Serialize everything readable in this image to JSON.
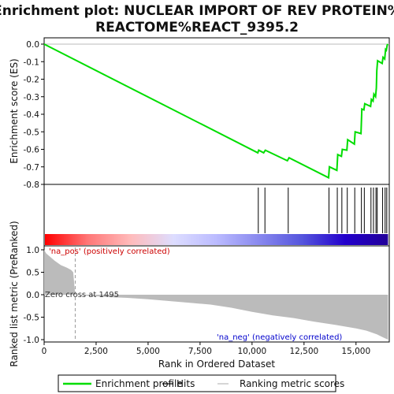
{
  "chart_data": {
    "type": "line",
    "title_line1": "Enrichment plot: NUCLEAR IMPORT OF REV PROTEIN%",
    "title_line2": "REACTOME%REACT_9395.2",
    "xlabel": "Rank in Ordered Dataset",
    "xlim": [
      0,
      16600
    ],
    "xticks": [
      0,
      2500,
      5000,
      7500,
      10000,
      12500,
      15000
    ],
    "xtick_labels": [
      "0",
      "2,500",
      "5,000",
      "7,500",
      "10,000",
      "12,500",
      "15,000"
    ],
    "es_panel": {
      "ylabel": "Enrichment score (ES)",
      "ylim": [
        -0.8,
        0.0
      ],
      "yticks": [
        0.0,
        -0.1,
        -0.2,
        -0.3,
        -0.4,
        -0.5,
        -0.6,
        -0.7,
        -0.8
      ],
      "ytick_labels": [
        "0.0",
        "-0.1",
        "-0.2",
        "-0.3",
        "-0.4",
        "-0.5",
        "-0.6",
        "-0.7",
        "-0.8"
      ],
      "series_name": "Enrichment profile",
      "color": "#00dd00",
      "x": [
        0,
        10280,
        10320,
        10560,
        10640,
        11700,
        11780,
        13680,
        13720,
        14080,
        14120,
        14300,
        14340,
        14560,
        14600,
        14920,
        14960,
        15240,
        15280,
        15380,
        15420,
        15700,
        15740,
        15820,
        15860,
        15940,
        15980,
        16000,
        16040,
        16260,
        16300,
        16380,
        16420,
        16460,
        16500,
        16540
      ],
      "y": [
        0.0,
        -0.62,
        -0.605,
        -0.62,
        -0.605,
        -0.665,
        -0.648,
        -0.762,
        -0.7,
        -0.72,
        -0.63,
        -0.64,
        -0.6,
        -0.605,
        -0.545,
        -0.57,
        -0.5,
        -0.51,
        -0.37,
        -0.375,
        -0.34,
        -0.355,
        -0.315,
        -0.325,
        -0.285,
        -0.3,
        -0.25,
        -0.15,
        -0.095,
        -0.11,
        -0.075,
        -0.085,
        -0.03,
        -0.035,
        -0.005,
        0.0
      ]
    },
    "hits": [
      10300,
      10620,
      11740,
      13700,
      14100,
      14320,
      14580,
      14940,
      15260,
      15400,
      15720,
      15840,
      15960,
      16020,
      16280,
      16400,
      16480
    ],
    "heat_stops": [
      "#ff0000",
      "#ff7777",
      "#ffbbbb",
      "#ddddff",
      "#bbbbff",
      "#8888ee",
      "#5555dd",
      "#2200cc",
      "#220099"
    ],
    "rank_panel": {
      "ylabel": "Ranked list metric (PreRanked)",
      "ylim": [
        -1.05,
        1.05
      ],
      "yticks": [
        1.0,
        0.5,
        0.0,
        -0.5,
        -1.0
      ],
      "ytick_labels": [
        "1.0",
        "0.5",
        "0.0",
        "-0.5",
        "-1.0"
      ],
      "series_name": "Ranking metric scores",
      "x": [
        0,
        100,
        300,
        500,
        800,
        1100,
        1300,
        1400,
        1495,
        2000,
        3000,
        4000,
        5000,
        6000,
        7000,
        8000,
        9000,
        10000,
        11000,
        12000,
        13000,
        14000,
        15000,
        15500,
        16000,
        16300,
        16540
      ],
      "y": [
        1.0,
        0.92,
        0.84,
        0.76,
        0.66,
        0.6,
        0.55,
        0.5,
        0.0,
        -0.02,
        -0.05,
        -0.07,
        -0.1,
        -0.14,
        -0.18,
        -0.22,
        -0.29,
        -0.38,
        -0.46,
        -0.52,
        -0.6,
        -0.67,
        -0.75,
        -0.8,
        -0.88,
        -0.95,
        -1.0
      ],
      "pos_label": "'na_pos' (positively correlated)",
      "neg_label": "'na_neg' (negatively correlated)",
      "zero_cross_label": "Zero cross at 1495",
      "zero_cross": 1495
    },
    "legend": [
      {
        "label": "Enrichment profile",
        "color": "#00dd00"
      },
      {
        "label": "Hits",
        "color": "#000000"
      },
      {
        "label": "Ranking metric scores",
        "color": "#bbbbbb"
      }
    ]
  }
}
